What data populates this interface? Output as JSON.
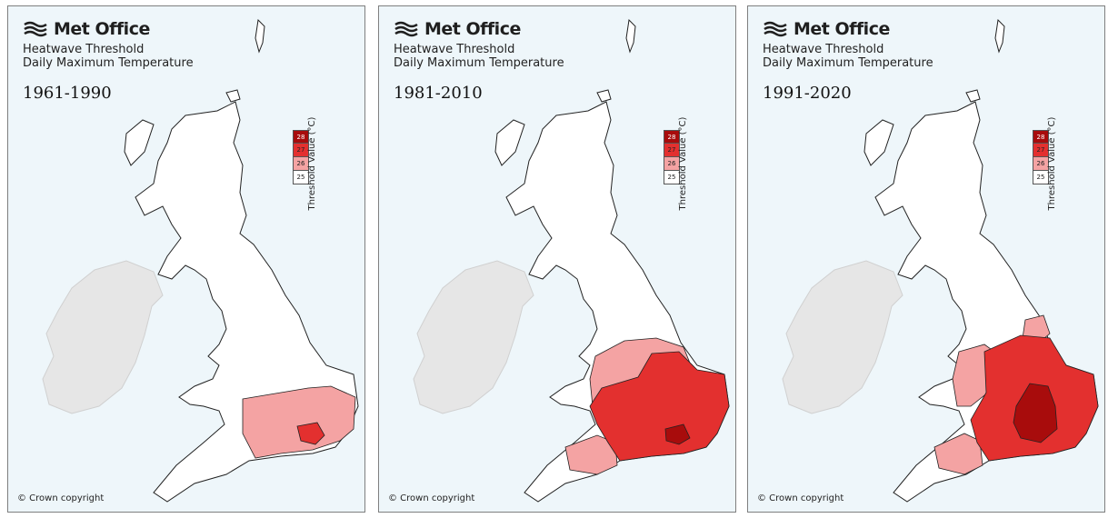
{
  "colors": {
    "t25": "#ffffff",
    "t26": "#f4a3a3",
    "t27": "#e3302f",
    "t28": "#a80c0c",
    "ireland": "#e6e6e6",
    "sea": "#eef6fa"
  },
  "legend": {
    "title": "Threshold Value (°C)",
    "values": [
      "28",
      "27",
      "26",
      "25"
    ]
  },
  "panels": [
    {
      "brand": "Met Office",
      "line1": "Heatwave Threshold",
      "line2": "Daily Maximum Temperature",
      "period": "1961-1990",
      "copyright": "© Crown copyright"
    },
    {
      "brand": "Met Office",
      "line1": "Heatwave Threshold",
      "line2": "Daily Maximum Temperature",
      "period": "1981-2010",
      "copyright": "© Crown copyright"
    },
    {
      "brand": "Met Office",
      "line1": "Heatwave Threshold",
      "line2": "Daily Maximum Temperature",
      "period": "1991-2020",
      "copyright": "© Crown copyright"
    }
  ]
}
